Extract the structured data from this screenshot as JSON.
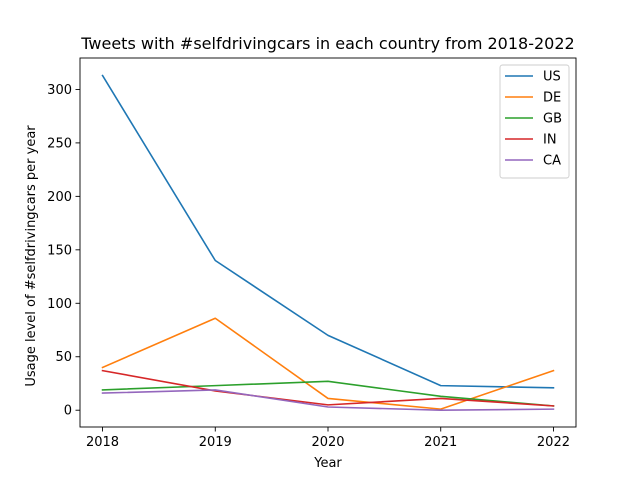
{
  "chart_data": {
    "type": "line",
    "title": "Tweets with #selfdrivingcars in each country from 2018-2022",
    "xlabel": "Year",
    "ylabel": "Usage level of #selfdrivingcars per year",
    "x": [
      2018,
      2019,
      2020,
      2021,
      2022
    ],
    "xlim": [
      2017.8,
      2022.2
    ],
    "ylim": [
      -15.7,
      329.4
    ],
    "yticks": [
      0,
      50,
      100,
      150,
      200,
      250,
      300
    ],
    "grid": false,
    "legend_position": "top-right",
    "series": [
      {
        "name": "US",
        "color": "#1f77b4",
        "values": [
          313,
          140,
          70,
          23,
          21
        ]
      },
      {
        "name": "DE",
        "color": "#ff7f0e",
        "values": [
          40,
          86,
          11,
          1,
          37
        ]
      },
      {
        "name": "GB",
        "color": "#2ca02c",
        "values": [
          19,
          23,
          27,
          13,
          4
        ]
      },
      {
        "name": "IN",
        "color": "#d62728",
        "values": [
          37,
          18,
          5,
          11,
          4
        ]
      },
      {
        "name": "CA",
        "color": "#9467bd",
        "values": [
          16,
          19,
          3,
          0,
          1
        ]
      }
    ]
  }
}
